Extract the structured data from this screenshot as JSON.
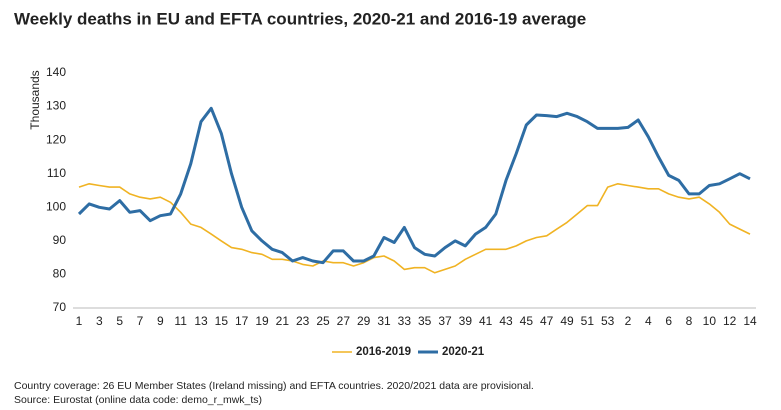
{
  "chart_data": {
    "type": "line",
    "title": "Weekly deaths in EU and EFTA countries, 2020-21 and 2016-19 average",
    "y_label": "Thousands",
    "categories": [
      "1",
      null,
      "3",
      null,
      "5",
      null,
      "7",
      null,
      "9",
      null,
      "11",
      null,
      "13",
      null,
      "15",
      null,
      "17",
      null,
      "19",
      null,
      "21",
      null,
      "23",
      null,
      "25",
      null,
      "27",
      null,
      "29",
      null,
      "31",
      null,
      "33",
      null,
      "35",
      null,
      "37",
      null,
      "39",
      null,
      "41",
      null,
      "43",
      null,
      "45",
      null,
      "47",
      null,
      "49",
      null,
      "51",
      null,
      "53",
      null,
      "2",
      null,
      "4",
      null,
      "6",
      null,
      "8",
      null,
      "10",
      null,
      "12",
      null,
      "14"
    ],
    "series": [
      {
        "name": "2016-2019",
        "color": "#f0b323",
        "values": [
          106,
          107,
          106.5,
          106,
          106,
          104,
          103,
          102.5,
          103,
          101.5,
          98.5,
          95,
          94,
          92,
          90,
          88,
          87.5,
          86.5,
          86,
          84.5,
          84.5,
          84,
          83,
          82.5,
          84,
          83.5,
          83.5,
          82.5,
          83.5,
          85,
          85.5,
          84,
          81.5,
          82,
          82,
          80.5,
          81.5,
          82.5,
          84.5,
          86,
          87.5,
          87.5,
          87.5,
          88.5,
          90,
          91,
          91.5,
          93.5,
          95.5,
          98,
          100.5,
          100.5,
          106,
          107,
          106.5,
          106,
          105.5,
          105.5,
          104,
          103,
          102.5,
          103,
          101,
          98.5,
          95,
          93.5,
          92
        ]
      },
      {
        "name": "2020-21",
        "color": "#2e6da4",
        "values": [
          98,
          101,
          100,
          99.5,
          102,
          98.5,
          99,
          96,
          97.5,
          98,
          104,
          113,
          125.5,
          129.5,
          122,
          110,
          100,
          93,
          90,
          87.5,
          86.5,
          84,
          85,
          84,
          83.5,
          87,
          87,
          84,
          84,
          85.5,
          91,
          89.5,
          94,
          88,
          86,
          85.5,
          88,
          90,
          88.5,
          92,
          94,
          98,
          108,
          116,
          124.5,
          127.5,
          127.3,
          127,
          128,
          127,
          125.5,
          123.5,
          123.5,
          123.5,
          123.8,
          126,
          121,
          115,
          109.5,
          108,
          104,
          104,
          106.5,
          107,
          108.5,
          110,
          108.5
        ]
      }
    ],
    "ylim": [
      70,
      140
    ],
    "yticks": [
      70,
      80,
      90,
      100,
      110,
      120,
      130,
      140
    ],
    "grid": false,
    "legend": "bottom",
    "notes": [
      "Country coverage: 26 EU Member States (Ireland missing) and EFTA countries. 2020/2021 data are provisional.",
      "Source: Eurostat (online data code: demo_r_mwk_ts)"
    ]
  }
}
